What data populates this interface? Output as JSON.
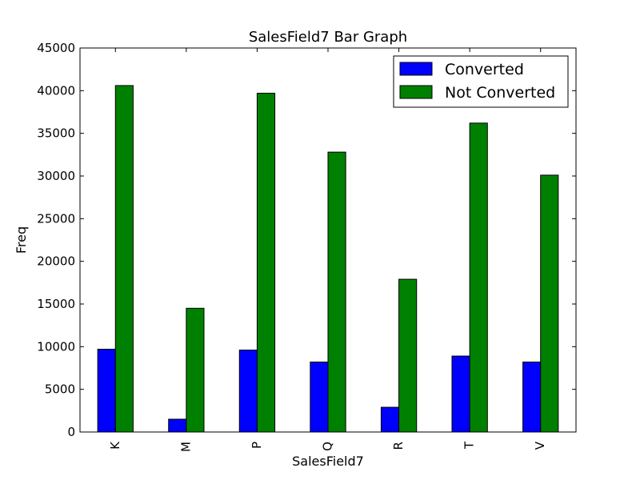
{
  "chart_data": {
    "type": "bar",
    "title": "SalesField7 Bar Graph",
    "xlabel": "SalesField7",
    "ylabel": "Freq",
    "categories": [
      "K",
      "M",
      "P",
      "Q",
      "R",
      "T",
      "V"
    ],
    "series": [
      {
        "name": "Converted",
        "values": [
          9700,
          1500,
          9600,
          8200,
          2900,
          8900,
          8200
        ]
      },
      {
        "name": "Not Converted",
        "values": [
          40600,
          14500,
          39700,
          32800,
          17900,
          36200,
          30100
        ]
      }
    ],
    "ylim": [
      0,
      45000
    ],
    "yticks": [
      "0",
      "5000",
      "10000",
      "15000",
      "20000",
      "25000",
      "30000",
      "35000",
      "40000",
      "45000"
    ],
    "grid": false,
    "legend_position": "top-right",
    "colors": {
      "Converted": "#0000ff",
      "Not Converted": "#008000"
    }
  }
}
